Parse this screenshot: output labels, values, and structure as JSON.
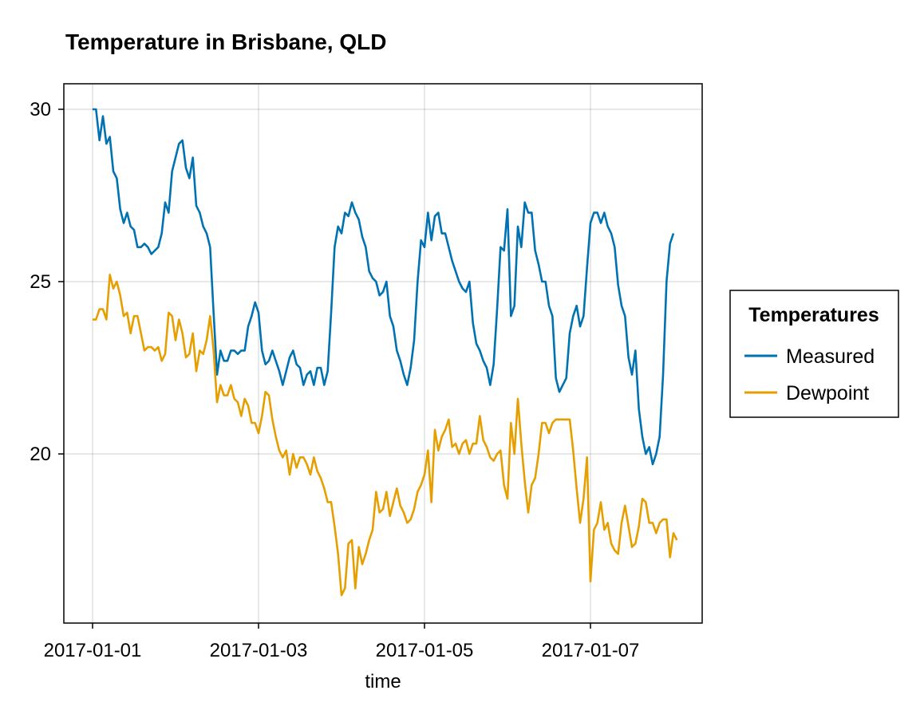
{
  "chart_data": {
    "type": "line",
    "title": "Temperature in Brisbane, QLD",
    "xlabel": "time",
    "ylabel": "",
    "x_start": "2017-01-01",
    "x_step_hours": 1,
    "xticks": [
      "2017-01-01",
      "2017-01-03",
      "2017-01-05",
      "2017-01-07"
    ],
    "yticks": [
      "20",
      "25",
      "30"
    ],
    "ylim": [
      15.2,
      30.8
    ],
    "grid": true,
    "legend": {
      "title": "Temperatures",
      "placement": "right"
    },
    "series": [
      {
        "name": "Measured",
        "color": "#0072b2",
        "values": [
          30.0,
          30.0,
          29.1,
          29.8,
          29.0,
          29.2,
          28.2,
          28.0,
          27.1,
          26.7,
          27.0,
          26.6,
          26.5,
          26.0,
          26.0,
          26.1,
          26.0,
          25.8,
          25.9,
          26.0,
          26.4,
          27.3,
          27.0,
          28.2,
          28.6,
          29.0,
          29.1,
          28.3,
          28.0,
          28.6,
          27.2,
          27.0,
          26.6,
          26.4,
          26.0,
          24.1,
          22.3,
          23.0,
          22.7,
          22.7,
          23.0,
          23.0,
          22.9,
          23.0,
          23.0,
          23.7,
          24.0,
          24.4,
          24.1,
          23.0,
          22.6,
          22.7,
          23.0,
          22.7,
          22.4,
          22.0,
          22.4,
          22.8,
          23.0,
          22.6,
          22.5,
          22.0,
          22.3,
          22.4,
          22.0,
          22.5,
          22.5,
          22.0,
          22.4,
          24.1,
          26.0,
          26.6,
          26.4,
          27.0,
          26.9,
          27.3,
          27.0,
          26.8,
          26.3,
          26.0,
          25.3,
          25.1,
          25.0,
          24.6,
          24.7,
          25.0,
          24.0,
          23.7,
          23.0,
          22.7,
          22.3,
          22.0,
          22.5,
          23.3,
          25.0,
          26.2,
          26.0,
          27.0,
          26.2,
          26.9,
          27.0,
          26.4,
          26.4,
          26.0,
          25.6,
          25.3,
          25.0,
          24.8,
          24.7,
          25.0,
          23.8,
          23.2,
          23.0,
          22.7,
          22.5,
          22.0,
          22.6,
          24.2,
          26.0,
          25.9,
          27.1,
          24.0,
          24.3,
          26.6,
          26.0,
          27.3,
          27.0,
          27.0,
          25.9,
          25.5,
          25.0,
          25.0,
          24.3,
          24.0,
          22.2,
          21.8,
          22.0,
          22.2,
          23.5,
          24.0,
          24.3,
          23.7,
          24.0,
          25.4,
          26.7,
          27.0,
          27.0,
          26.7,
          27.0,
          26.6,
          26.4,
          26.0,
          24.9,
          24.3,
          24.0,
          22.8,
          22.3,
          23.0,
          21.3,
          20.5,
          20.0,
          20.2,
          19.7,
          20.0,
          20.5,
          22.3,
          25.0,
          26.1,
          26.4
        ]
      },
      {
        "name": "Dewpoint",
        "color": "#e69f00",
        "values": [
          23.9,
          23.9,
          24.2,
          24.2,
          23.9,
          25.2,
          24.8,
          25.0,
          24.6,
          24.0,
          24.1,
          23.5,
          24.0,
          24.0,
          23.5,
          23.0,
          23.1,
          23.1,
          23.0,
          23.1,
          22.7,
          22.9,
          24.1,
          24.0,
          23.3,
          23.9,
          23.5,
          22.8,
          22.9,
          23.5,
          22.4,
          23.0,
          22.9,
          23.3,
          24.0,
          23.0,
          21.5,
          22.0,
          21.7,
          21.7,
          22.0,
          21.6,
          21.5,
          21.1,
          21.6,
          21.4,
          20.9,
          20.9,
          20.6,
          21.1,
          21.8,
          21.7,
          21.0,
          20.5,
          20.1,
          19.9,
          20.1,
          19.4,
          20.0,
          19.6,
          19.9,
          19.9,
          19.7,
          19.4,
          19.9,
          19.5,
          19.3,
          19.0,
          18.6,
          18.6,
          17.9,
          17.1,
          15.9,
          16.1,
          17.4,
          17.5,
          16.1,
          17.3,
          16.8,
          17.1,
          17.5,
          17.8,
          18.9,
          18.3,
          18.4,
          18.9,
          18.2,
          18.6,
          19.0,
          18.5,
          18.3,
          18.0,
          18.1,
          18.4,
          18.9,
          19.1,
          19.4,
          20.1,
          18.6,
          20.7,
          20.1,
          20.5,
          20.7,
          21.0,
          20.2,
          20.3,
          20.0,
          20.3,
          20.4,
          20.0,
          20.3,
          20.3,
          21.1,
          20.4,
          20.2,
          19.9,
          19.8,
          20.0,
          20.1,
          19.1,
          18.7,
          20.9,
          20.0,
          21.6,
          20.3,
          19.2,
          18.3,
          19.1,
          19.3,
          20.0,
          20.9,
          20.9,
          20.6,
          20.9,
          21.0,
          21.0,
          21.0,
          21.0,
          21.0,
          20.1,
          19.0,
          18.0,
          18.7,
          19.9,
          16.3,
          17.8,
          18.0,
          18.6,
          17.8,
          18.0,
          17.4,
          17.2,
          17.1,
          18.0,
          18.5,
          17.9,
          17.3,
          17.4,
          17.9,
          18.7,
          18.6,
          18.0,
          18.0,
          17.7,
          18.0,
          18.1,
          18.1,
          17.0,
          17.7,
          17.5
        ]
      }
    ]
  }
}
